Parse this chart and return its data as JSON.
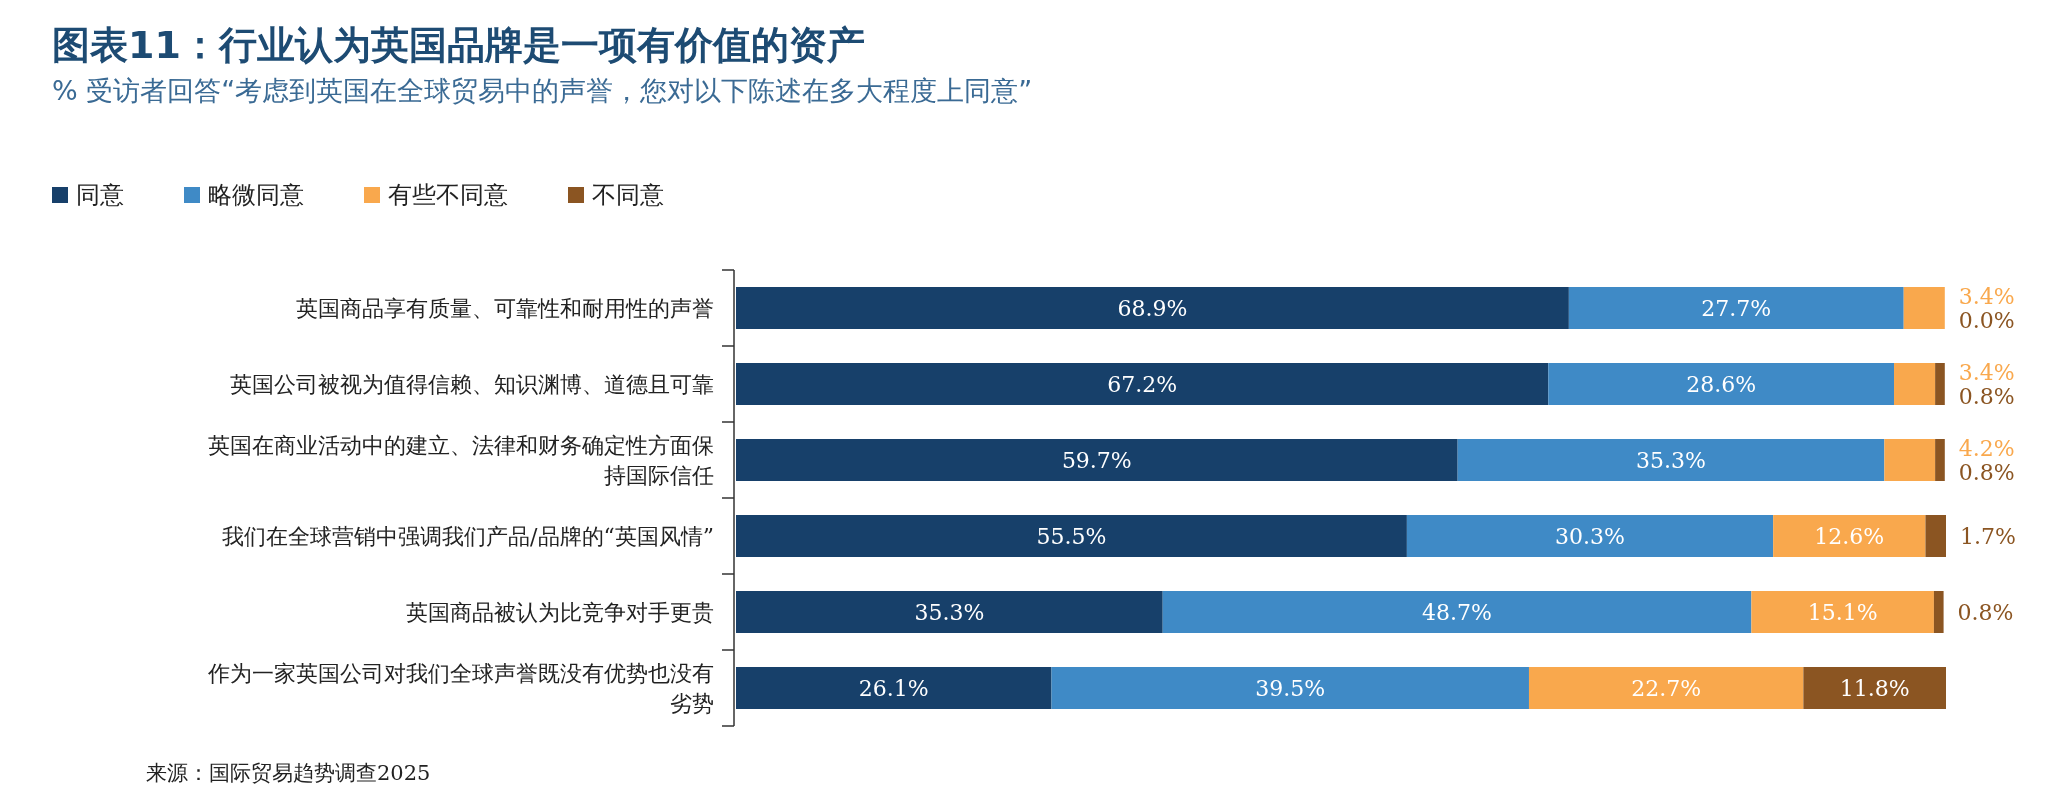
{
  "chart_data": {
    "type": "bar",
    "orientation": "horizontal",
    "stacked": true,
    "legend": "top left",
    "title": "图表11：行业认为英国品牌是一项有价值的资产",
    "subtitle": "% 受访者回答“考虑到英国在全球贸易中的声誉，您对以下陈述在多大程度上同意”",
    "categories": [
      "英国商品享有质量、可靠性和耐用性的声誉",
      "英国公司被视为值得信赖、知识渊博、道德且可靠",
      "英国在商业活动中的建立、法律和财务确定性方面保持国际信任",
      "我们在全球营销中强调我们产品/品牌的“英国风情”",
      "英国商品被认为比竞争对手更贵",
      "作为一家英国公司对我们全球声誉既没有优势也没有劣势"
    ],
    "series": [
      {
        "name": "同意",
        "color": "#17406a",
        "values": [
          68.9,
          67.2,
          59.7,
          55.5,
          35.3,
          26.1
        ],
        "value_labels": [
          "68.9%",
          "67.2%",
          "59.7%",
          "55.5%",
          "35.3%",
          "26.1%"
        ]
      },
      {
        "name": "略微同意",
        "color": "#3f8ac6",
        "values": [
          27.7,
          28.6,
          35.3,
          30.3,
          48.7,
          39.5
        ],
        "value_labels": [
          "27.7%",
          "28.6%",
          "35.3%",
          "30.3%",
          "48.7%",
          "39.5%"
        ]
      },
      {
        "name": "有些不同意",
        "color": "#f9a84d",
        "values": [
          3.4,
          3.4,
          4.2,
          12.6,
          15.1,
          22.7
        ],
        "value_labels": [
          "3.4%",
          "3.4%",
          "4.2%",
          "12.6%",
          "15.1%",
          "22.7%"
        ]
      },
      {
        "name": "不同意",
        "color": "#8b5522",
        "values": [
          0.0,
          0.8,
          0.8,
          1.7,
          0.8,
          11.8
        ],
        "value_labels": [
          "0.0%",
          "0.8%",
          "0.8%",
          "1.7%",
          "0.8%",
          "11.8%"
        ]
      }
    ],
    "annotations": [
      "来源：国际贸易趋势调查2025"
    ]
  }
}
